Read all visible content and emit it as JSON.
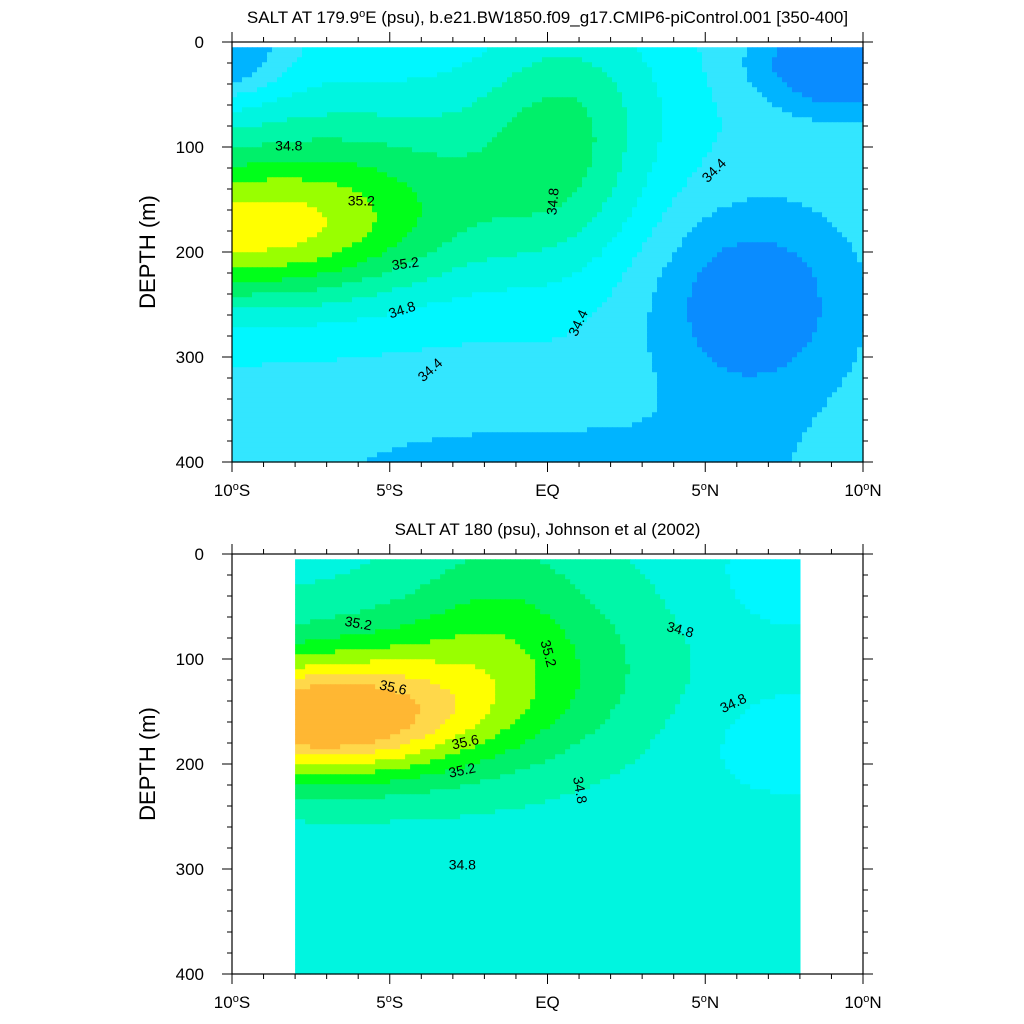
{
  "chart_data": [
    {
      "type": "contour",
      "title": "SALT AT 179.9°E (psu), b.e21.BW1850.f09_g17.CMIP6-piControl.001 [350-400]",
      "title_parts": [
        "SALT AT 179.9",
        "o",
        "E (psu), b.e21.BW1850.f09_g17.CMIP6-piControl.001 [350-400]"
      ],
      "xlabel": "",
      "ylabel": "DEPTH (m)",
      "xlim": [
        -10,
        10
      ],
      "ylim": [
        400,
        0
      ],
      "x_ticks": [
        {
          "value": -10,
          "main": "10",
          "deg": "o",
          "dir": "S"
        },
        {
          "value": -5,
          "main": "5",
          "deg": "o",
          "dir": "S"
        },
        {
          "value": 0,
          "main": "EQ",
          "deg": "",
          "dir": ""
        },
        {
          "value": 5,
          "main": "5",
          "deg": "o",
          "dir": "N"
        },
        {
          "value": 10,
          "main": "10",
          "deg": "o",
          "dir": "N"
        }
      ],
      "y_ticks": [
        0,
        100,
        200,
        300,
        400
      ],
      "data_x_range": [
        -10,
        10
      ],
      "contour_interval": 0.2,
      "contour_labels": [
        {
          "text": "34.8",
          "x": -8.2,
          "y": 100,
          "angle": 0
        },
        {
          "text": "35.2",
          "x": -5.9,
          "y": 152,
          "angle": 0
        },
        {
          "text": "35.2",
          "x": -4.5,
          "y": 212,
          "angle": -8
        },
        {
          "text": "34.8",
          "x": -4.6,
          "y": 256,
          "angle": -18
        },
        {
          "text": "34.4",
          "x": -3.7,
          "y": 313,
          "angle": -42
        },
        {
          "text": "34.8",
          "x": 0.2,
          "y": 152,
          "angle": -85
        },
        {
          "text": "34.4",
          "x": 1.0,
          "y": 268,
          "angle": -65
        },
        {
          "text": "34.4",
          "x": 5.3,
          "y": 123,
          "angle": -45
        }
      ]
    },
    {
      "type": "contour",
      "title": "SALT AT 180 (psu), Johnson et al (2002)",
      "title_parts": [
        "SALT AT 180 (psu), Johnson et al (2002)",
        "",
        ""
      ],
      "xlabel": "",
      "ylabel": "DEPTH (m)",
      "xlim": [
        -10,
        10
      ],
      "ylim": [
        400,
        0
      ],
      "x_ticks": [
        {
          "value": -10,
          "main": "10",
          "deg": "o",
          "dir": "S"
        },
        {
          "value": -5,
          "main": "5",
          "deg": "o",
          "dir": "S"
        },
        {
          "value": 0,
          "main": "EQ",
          "deg": "",
          "dir": ""
        },
        {
          "value": 5,
          "main": "5",
          "deg": "o",
          "dir": "N"
        },
        {
          "value": 10,
          "main": "10",
          "deg": "o",
          "dir": "N"
        }
      ],
      "y_ticks": [
        0,
        100,
        200,
        300,
        400
      ],
      "data_x_range": [
        -8,
        8
      ],
      "contour_interval": 0.2,
      "contour_labels": [
        {
          "text": "35.2",
          "x": -6.0,
          "y": 67,
          "angle": 10
        },
        {
          "text": "35.6",
          "x": -4.9,
          "y": 128,
          "angle": 12
        },
        {
          "text": "35.6",
          "x": -2.6,
          "y": 180,
          "angle": -12
        },
        {
          "text": "35.2",
          "x": -2.7,
          "y": 207,
          "angle": -12
        },
        {
          "text": "35.2",
          "x": 0.0,
          "y": 95,
          "angle": 75
        },
        {
          "text": "34.8",
          "x": 4.2,
          "y": 73,
          "angle": 15
        },
        {
          "text": "34.8",
          "x": 5.9,
          "y": 143,
          "angle": -25
        },
        {
          "text": "34.8",
          "x": 1.0,
          "y": 225,
          "angle": 80
        },
        {
          "text": "34.8",
          "x": -2.7,
          "y": 297,
          "angle": 0
        }
      ]
    }
  ]
}
